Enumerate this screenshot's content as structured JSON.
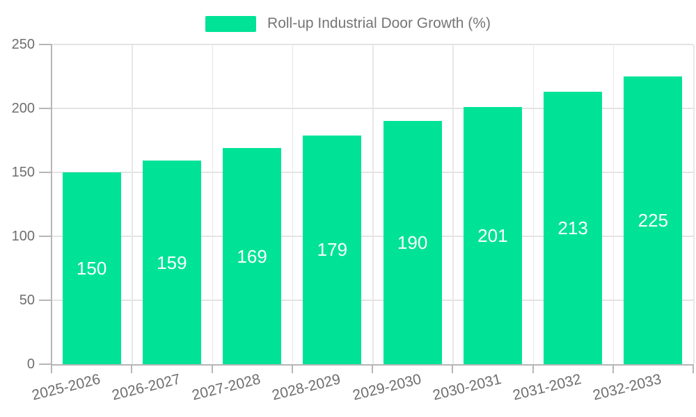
{
  "legend": {
    "label": "Roll-up Industrial Door Growth (%)"
  },
  "colors": {
    "bar": "#00E396",
    "grid": "#E3E3E3",
    "axis": "#B6B6B6",
    "axis_label_text": "#6E6E6E",
    "legend_text": "#757575",
    "value_label_text": "#FFFFFF",
    "background": "#FFFFFF"
  },
  "chart_data": {
    "type": "bar",
    "title": "Roll-up Industrial Door Growth (%)",
    "categories": [
      "2025-2026",
      "2026-2027",
      "2027-2028",
      "2028-2029",
      "2029-2030",
      "2030-2031",
      "2031-2032",
      "2032-2033"
    ],
    "values": [
      150,
      159,
      169,
      179,
      190,
      201,
      213,
      225
    ],
    "series": [
      {
        "name": "Roll-up Industrial Door Growth (%)",
        "values": [
          150,
          159,
          169,
          179,
          190,
          201,
          213,
          225
        ]
      }
    ],
    "xlabel": "",
    "ylabel": "",
    "ylim": [
      0,
      250
    ],
    "yticks": [
      0,
      50,
      100,
      150,
      200,
      250
    ],
    "grid": true,
    "legend_position": "top",
    "value_labels": "inside-center"
  }
}
